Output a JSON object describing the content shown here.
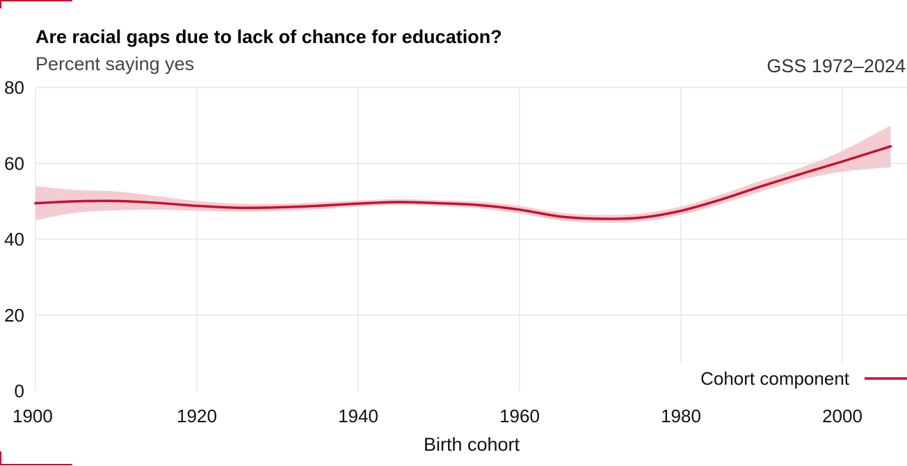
{
  "colors": {
    "accent": "#c8102e",
    "band": "#f2c6cc"
  },
  "chart_data": {
    "type": "line",
    "title": "Are racial gaps due to lack of chance for education?",
    "subtitle": "Percent saying yes",
    "source": "GSS 1972–2024",
    "xlabel": "Birth cohort",
    "ylabel": "",
    "xlim": [
      1900,
      2007
    ],
    "ylim": [
      0,
      80
    ],
    "x_ticks": [
      1900,
      1920,
      1940,
      1960,
      1980,
      2000
    ],
    "y_ticks": [
      0,
      20,
      40,
      60,
      80
    ],
    "grid": true,
    "legend_position": "bottom-right",
    "series": [
      {
        "name": "Cohort component",
        "color": "#c8102e",
        "x": [
          1900,
          1905,
          1910,
          1915,
          1920,
          1925,
          1930,
          1935,
          1940,
          1945,
          1950,
          1955,
          1960,
          1965,
          1970,
          1975,
          1980,
          1985,
          1990,
          1995,
          2000,
          2006
        ],
        "y": [
          49.5,
          50.0,
          50.1,
          49.6,
          48.8,
          48.3,
          48.4,
          48.8,
          49.4,
          49.8,
          49.5,
          49.0,
          47.8,
          46.0,
          45.4,
          45.7,
          47.5,
          50.5,
          54.0,
          57.3,
          60.5,
          64.5
        ],
        "lower": [
          45.0,
          47.0,
          47.6,
          47.8,
          47.5,
          47.3,
          47.5,
          47.9,
          48.6,
          49.1,
          48.8,
          48.1,
          46.8,
          45.0,
          44.4,
          44.7,
          46.4,
          49.3,
          52.6,
          55.7,
          57.8,
          59.0
        ],
        "upper": [
          54.0,
          53.0,
          52.6,
          51.4,
          50.1,
          49.4,
          49.3,
          49.7,
          50.2,
          50.6,
          50.3,
          49.9,
          48.8,
          47.0,
          46.4,
          46.8,
          48.6,
          51.8,
          55.5,
          59.0,
          63.3,
          70.0
        ]
      }
    ]
  }
}
